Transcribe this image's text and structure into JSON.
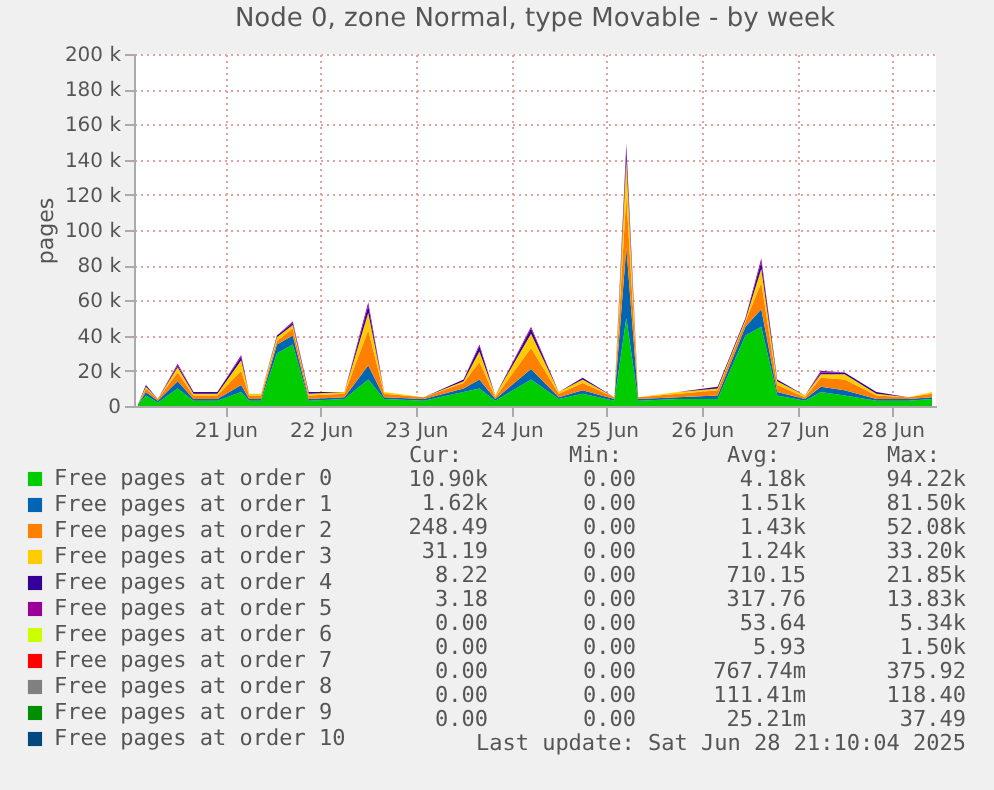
{
  "chart_data": {
    "type": "area",
    "stacked": true,
    "title": "Node 0, zone Normal, type Movable - by week",
    "ylabel": "pages",
    "x": [
      "2025-06-20T02:00",
      "2025-06-20T04:00",
      "2025-06-20T07:00",
      "2025-06-20T12:00",
      "2025-06-20T16:00",
      "2025-06-20T22:00",
      "2025-06-21T04:00",
      "2025-06-21T06:00",
      "2025-06-21T09:00",
      "2025-06-21T13:00",
      "2025-06-21T17:00",
      "2025-06-21T21:00",
      "2025-06-22T06:00",
      "2025-06-22T12:00",
      "2025-06-22T16:00",
      "2025-06-23T02:00",
      "2025-06-23T12:00",
      "2025-06-23T16:00",
      "2025-06-23T20:00",
      "2025-06-24T05:00",
      "2025-06-24T12:00",
      "2025-06-24T18:00",
      "2025-06-25T02:00",
      "2025-06-25T05:00",
      "2025-06-25T08:00",
      "2025-06-25T18:00",
      "2025-06-26T04:00",
      "2025-06-26T11:00",
      "2025-06-26T15:00",
      "2025-06-26T19:00",
      "2025-06-27T02:00",
      "2025-06-27T06:00",
      "2025-06-27T12:00",
      "2025-06-27T20:00",
      "2025-06-28T04:00",
      "2025-06-28T10:00"
    ],
    "series": [
      {
        "name": "Free pages at order  0",
        "color": "#00cc00",
        "values": [
          1000,
          6000,
          2000,
          10000,
          3000,
          3000,
          8000,
          3000,
          3000,
          30000,
          35000,
          3000,
          4000,
          15000,
          4000,
          3000,
          8000,
          10000,
          3000,
          15000,
          4000,
          7000,
          3000,
          50000,
          3000,
          4000,
          4000,
          40000,
          45000,
          6000,
          3000,
          8000,
          6000,
          3000,
          3000,
          4000
        ]
      },
      {
        "name": "Free pages at order  1",
        "color": "#0066b3",
        "values": [
          0,
          2000,
          1000,
          4000,
          1000,
          1000,
          4000,
          1000,
          1000,
          5000,
          5000,
          1000,
          1000,
          8000,
          1000,
          1000,
          2000,
          5000,
          1000,
          6000,
          1000,
          2000,
          1000,
          40000,
          1000,
          1000,
          2000,
          5000,
          10000,
          2000,
          1000,
          3000,
          3000,
          1000,
          1000,
          1000
        ]
      },
      {
        "name": "Free pages at order  2",
        "color": "#ff8000",
        "values": [
          0,
          2000,
          1000,
          5000,
          2000,
          2000,
          8000,
          2000,
          2000,
          2000,
          4000,
          2000,
          2000,
          20000,
          2000,
          1000,
          3000,
          10000,
          1000,
          12000,
          2000,
          4000,
          1000,
          30000,
          1000,
          2000,
          3000,
          3000,
          15000,
          4000,
          1000,
          5000,
          6000,
          2000,
          1000,
          2000
        ]
      },
      {
        "name": "Free pages at order  3",
        "color": "#ffcc00",
        "values": [
          0,
          1000,
          0,
          3000,
          1000,
          1000,
          6000,
          1000,
          1000,
          2000,
          2000,
          1000,
          1000,
          10000,
          1000,
          0,
          1000,
          6000,
          1000,
          8000,
          1000,
          2000,
          0,
          20000,
          0,
          1000,
          1000,
          1000,
          8000,
          2000,
          1000,
          2000,
          3000,
          1000,
          0,
          1000
        ]
      },
      {
        "name": "Free pages at order  4",
        "color": "#330099",
        "values": [
          0,
          1000,
          0,
          1000,
          1000,
          1000,
          2000,
          0,
          0,
          1000,
          1000,
          1000,
          0,
          4000,
          0,
          0,
          1000,
          3000,
          0,
          3000,
          0,
          1000,
          0,
          6000,
          0,
          0,
          1000,
          1000,
          4000,
          1000,
          0,
          1000,
          1000,
          1000,
          0,
          0
        ]
      },
      {
        "name": "Free pages at order  5",
        "color": "#990099",
        "values": [
          0,
          0,
          0,
          1000,
          0,
          0,
          1000,
          0,
          0,
          0,
          1000,
          0,
          0,
          2000,
          0,
          0,
          0,
          1000,
          0,
          1000,
          0,
          0,
          0,
          3000,
          0,
          0,
          0,
          0,
          2000,
          0,
          0,
          1000,
          0,
          0,
          0,
          0
        ]
      },
      {
        "name": "Free pages at order  6",
        "color": "#ccff00",
        "values": [
          null,
          null,
          null,
          null,
          null,
          null,
          null,
          null,
          null,
          null,
          null,
          null,
          null,
          null,
          null,
          null,
          null,
          null,
          null,
          null,
          null,
          null,
          null,
          null,
          null,
          null,
          null,
          null,
          null,
          null,
          null,
          null,
          null,
          null,
          null,
          null
        ]
      },
      {
        "name": "Free pages at order  7",
        "color": "#ff0000",
        "values": [
          null,
          null,
          null,
          null,
          null,
          null,
          null,
          null,
          null,
          null,
          null,
          null,
          null,
          null,
          null,
          null,
          null,
          null,
          null,
          null,
          null,
          null,
          null,
          null,
          null,
          null,
          null,
          null,
          null,
          null,
          null,
          null,
          null,
          null,
          null,
          null
        ]
      },
      {
        "name": "Free pages at order  8",
        "color": "#808080",
        "values": [
          null,
          null,
          null,
          null,
          null,
          null,
          null,
          null,
          null,
          null,
          null,
          null,
          null,
          null,
          null,
          null,
          null,
          null,
          null,
          null,
          null,
          null,
          null,
          null,
          null,
          null,
          null,
          null,
          null,
          null,
          null,
          null,
          null,
          null,
          null,
          null
        ]
      },
      {
        "name": "Free pages at order  9",
        "color": "#008f00",
        "values": [
          null,
          null,
          null,
          null,
          null,
          null,
          null,
          null,
          null,
          null,
          null,
          null,
          null,
          null,
          null,
          null,
          null,
          null,
          null,
          null,
          null,
          null,
          null,
          null,
          null,
          null,
          null,
          null,
          null,
          null,
          null,
          null,
          null,
          null,
          null,
          null
        ]
      },
      {
        "name": "Free pages at order 10",
        "color": "#00487d",
        "values": [
          null,
          null,
          null,
          null,
          null,
          null,
          null,
          null,
          null,
          null,
          null,
          null,
          null,
          null,
          null,
          null,
          null,
          null,
          null,
          null,
          null,
          null,
          null,
          null,
          null,
          null,
          null,
          null,
          null,
          null,
          null,
          null,
          null,
          null,
          null,
          null
        ]
      }
    ],
    "xlim": [
      "2025-06-20T01:00",
      "2025-06-28T11:00"
    ],
    "xticks": [
      {
        "value": "2025-06-21T00:00",
        "label": "21 Jun"
      },
      {
        "value": "2025-06-22T00:00",
        "label": "22 Jun"
      },
      {
        "value": "2025-06-23T00:00",
        "label": "23 Jun"
      },
      {
        "value": "2025-06-24T00:00",
        "label": "24 Jun"
      },
      {
        "value": "2025-06-25T00:00",
        "label": "25 Jun"
      },
      {
        "value": "2025-06-26T00:00",
        "label": "26 Jun"
      },
      {
        "value": "2025-06-27T00:00",
        "label": "27 Jun"
      },
      {
        "value": "2025-06-28T00:00",
        "label": "28 Jun"
      }
    ],
    "ylim": [
      0,
      200000
    ],
    "yticks": [
      {
        "value": 0,
        "label": "0"
      },
      {
        "value": 20000,
        "label": "20 k"
      },
      {
        "value": 40000,
        "label": "40 k"
      },
      {
        "value": 60000,
        "label": "60 k"
      },
      {
        "value": 80000,
        "label": "80 k"
      },
      {
        "value": 100000,
        "label": "100 k"
      },
      {
        "value": 120000,
        "label": "120 k"
      },
      {
        "value": 140000,
        "label": "140 k"
      },
      {
        "value": 160000,
        "label": "160 k"
      },
      {
        "value": 180000,
        "label": "180 k"
      },
      {
        "value": 200000,
        "label": "200 k"
      }
    ],
    "grid": true,
    "legend": "bottom",
    "annotations": [
      "Cur:",
      "Min:",
      "Avg:",
      "Max:",
      "10.90k",
      "0.00",
      "4.18k",
      "94.22k",
      "1.62k",
      "0.00",
      "1.51k",
      "81.50k",
      "248.49",
      "0.00",
      "1.43k",
      "52.08k",
      "31.19",
      "0.00",
      "1.24k",
      "33.20k",
      "8.22",
      "0.00",
      "710.15",
      "21.85k",
      "3.18",
      "0.00",
      "317.76",
      "13.83k",
      "0.00",
      "0.00",
      "53.64",
      "5.34k",
      "0.00",
      "0.00",
      "5.93",
      "1.50k",
      "0.00",
      "0.00",
      "767.74m",
      "375.92",
      "0.00",
      "0.00",
      "111.41m",
      "118.40",
      "0.00",
      "0.00",
      "25.21m",
      "37.49",
      "Last update: Sat Jun 28 21:10:04 2025"
    ]
  }
}
